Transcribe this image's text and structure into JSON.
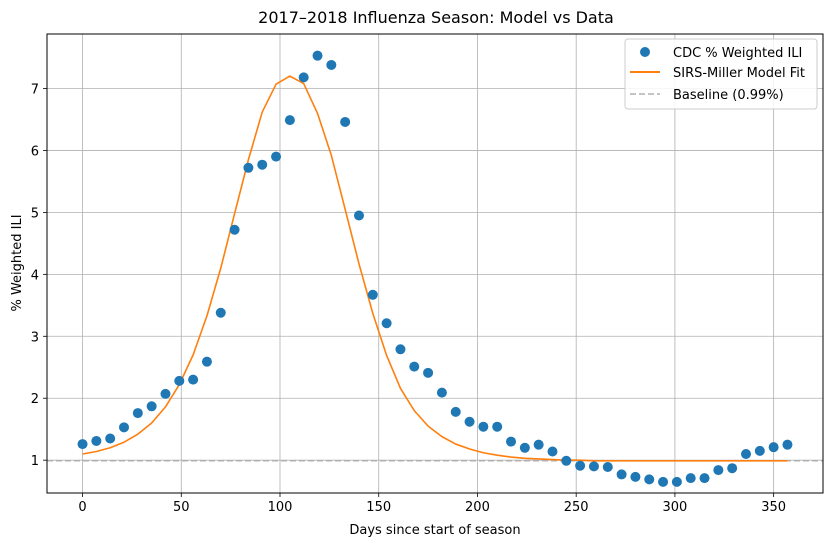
{
  "chart_data": {
    "type": "line",
    "title": "2017–2018 Influenza Season: Model vs Data",
    "xlabel": "Days since start of season",
    "ylabel": "% Weighted ILI",
    "xlim": [
      -18,
      375
    ],
    "ylim": [
      0.47,
      7.88
    ],
    "xticks": [
      0,
      50,
      100,
      150,
      200,
      250,
      300,
      350
    ],
    "yticks": [
      1,
      2,
      3,
      4,
      5,
      6,
      7
    ],
    "grid": true,
    "legend_position": "top-right",
    "series": [
      {
        "name": "CDC % Weighted ILI",
        "kind": "scatter",
        "color": "#1f77b4",
        "x": [
          0,
          7,
          14,
          21,
          28,
          35,
          42,
          49,
          56,
          63,
          70,
          77,
          84,
          91,
          98,
          105,
          112,
          119,
          126,
          133,
          140,
          147,
          154,
          161,
          168,
          175,
          182,
          189,
          196,
          203,
          210,
          217,
          224,
          231,
          238,
          245,
          252,
          259,
          266,
          273,
          280,
          287,
          294,
          301,
          308,
          315,
          322,
          329,
          336,
          343,
          350,
          357
        ],
        "y": [
          1.26,
          1.31,
          1.35,
          1.53,
          1.76,
          1.87,
          2.07,
          2.28,
          2.3,
          2.59,
          3.38,
          4.72,
          5.72,
          5.77,
          5.9,
          6.49,
          7.18,
          7.53,
          7.38,
          6.46,
          4.95,
          3.67,
          3.21,
          2.79,
          2.51,
          2.41,
          2.09,
          1.78,
          1.62,
          1.54,
          1.54,
          1.3,
          1.2,
          1.25,
          1.14,
          0.99,
          0.91,
          0.9,
          0.89,
          0.77,
          0.73,
          0.69,
          0.65,
          0.65,
          0.71,
          0.71,
          0.84,
          0.87,
          1.1,
          1.15,
          1.21,
          1.25
        ]
      },
      {
        "name": "SIRS-Miller Model Fit",
        "kind": "line",
        "color": "#ff7f0e",
        "x": [
          0,
          7,
          14,
          21,
          28,
          35,
          42,
          49,
          56,
          63,
          70,
          77,
          84,
          91,
          98,
          105,
          112,
          119,
          126,
          133,
          140,
          147,
          154,
          161,
          168,
          175,
          182,
          189,
          196,
          203,
          210,
          217,
          224,
          231,
          238,
          245,
          252,
          259,
          266,
          273,
          280,
          287,
          294,
          301,
          308,
          315,
          322,
          329,
          336,
          343,
          350,
          357
        ],
        "y": [
          1.1,
          1.14,
          1.2,
          1.29,
          1.42,
          1.6,
          1.86,
          2.22,
          2.7,
          3.33,
          4.1,
          4.98,
          5.85,
          6.62,
          7.07,
          7.2,
          7.08,
          6.6,
          5.92,
          5.05,
          4.17,
          3.37,
          2.69,
          2.16,
          1.8,
          1.55,
          1.38,
          1.26,
          1.18,
          1.12,
          1.08,
          1.05,
          1.03,
          1.02,
          1.01,
          1.0,
          1.0,
          0.99,
          0.99,
          0.99,
          0.99,
          0.99,
          0.99,
          0.99,
          0.99,
          0.99,
          0.99,
          0.99,
          0.99,
          0.99,
          0.99,
          0.99
        ]
      },
      {
        "name": "Baseline (0.99%)",
        "kind": "hline",
        "color": "#b0b0b0",
        "y": 0.99
      }
    ]
  }
}
